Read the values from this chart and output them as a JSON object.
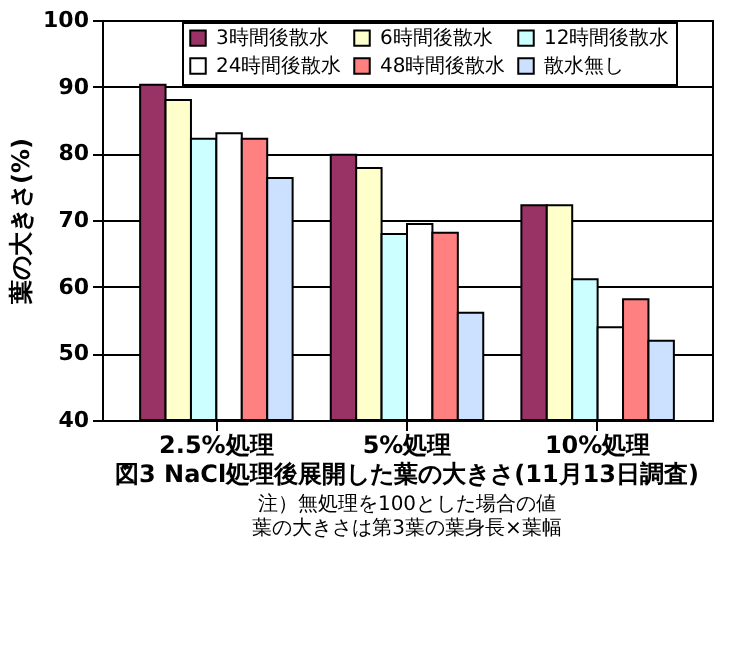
{
  "chart_data": {
    "type": "bar",
    "title": "図3 NaCl処理後展開した葉の大きさ(11月13日調査)",
    "ylabel": "葉の大きさ(%)",
    "categories": [
      "2.5%処理",
      "5%処理",
      "10%処理"
    ],
    "series": [
      {
        "name": "3時間後散水",
        "color": "#993366",
        "values": [
          90.3,
          79.8,
          72.2
        ]
      },
      {
        "name": "6時間後散水",
        "color": "#ffffcc",
        "values": [
          88.0,
          77.8,
          72.2
        ]
      },
      {
        "name": "12時間後散水",
        "color": "#ccffff",
        "values": [
          82.2,
          67.9,
          61.1
        ]
      },
      {
        "name": "24時間後散水",
        "color": "#ffffff",
        "values": [
          83.0,
          69.4,
          53.9
        ]
      },
      {
        "name": "48時間後散水",
        "color": "#ff8080",
        "values": [
          82.2,
          68.1,
          58.1
        ]
      },
      {
        "name": "散水無し",
        "color": "#cce0ff",
        "values": [
          76.3,
          56.1,
          51.9
        ]
      }
    ],
    "ylim": [
      40,
      100
    ],
    "yticks": [
      40,
      50,
      60,
      70,
      80,
      90,
      100
    ],
    "grid": "y",
    "legend": "top",
    "annotations": [
      "注）無処理を100とした場合の値",
      "葉の大きさは第3葉の葉身長×葉幅"
    ]
  }
}
